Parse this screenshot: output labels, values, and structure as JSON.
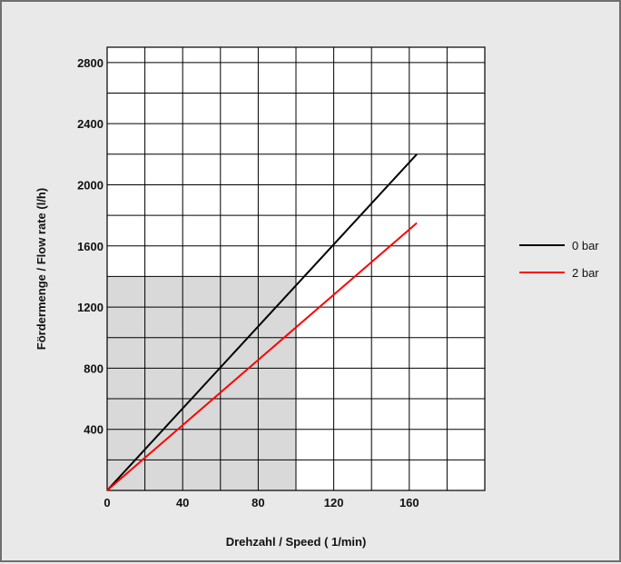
{
  "chart_data": {
    "type": "line",
    "title": "",
    "xlabel": "Drehzahl / Speed ( 1/min)",
    "ylabel": "Fördermenge / Flow rate (l/h)",
    "xlim": [
      0,
      200
    ],
    "ylim": [
      0,
      2900
    ],
    "x_ticks": [
      0,
      40,
      80,
      120,
      160
    ],
    "y_ticks": [
      400,
      800,
      1200,
      1600,
      2000,
      2400,
      2800
    ],
    "x_tick_labels": [
      "0",
      "40",
      "80",
      "120",
      "160"
    ],
    "y_tick_labels": [
      "400",
      "800",
      "1200",
      "1600",
      "2000",
      "2400",
      "2800"
    ],
    "grid": true,
    "shaded_region": {
      "x": [
        0,
        100
      ],
      "y": [
        0,
        1400
      ],
      "color": "#d9d9d9"
    },
    "legend_position": "right",
    "series": [
      {
        "name": "0 bar",
        "color": "#000000",
        "x": [
          0,
          164
        ],
        "y": [
          0,
          2200
        ]
      },
      {
        "name": "2 bar",
        "color": "#ff0000",
        "x": [
          0,
          164
        ],
        "y": [
          0,
          1750
        ]
      }
    ]
  }
}
